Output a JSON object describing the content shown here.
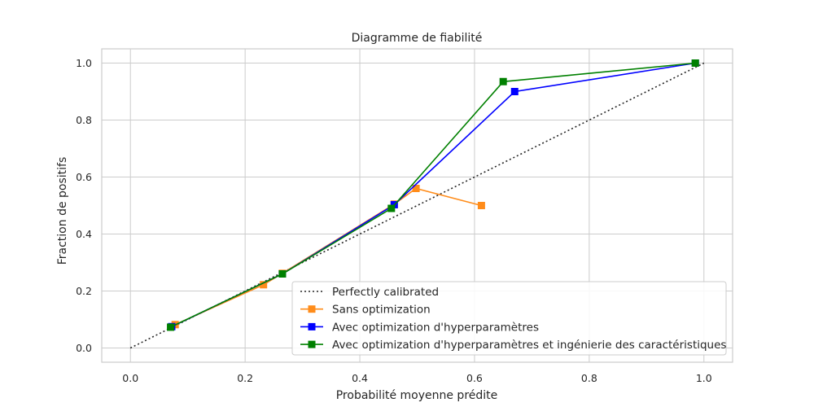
{
  "chart_data": {
    "type": "line",
    "title": "Diagramme de fiabilité",
    "xlabel": "Probabilité moyenne prédite",
    "ylabel": "Fraction de positifs",
    "xlim": [
      -0.05,
      1.05
    ],
    "ylim": [
      -0.05,
      1.05
    ],
    "x_ticks": [
      0.0,
      0.2,
      0.4,
      0.6,
      0.8,
      1.0
    ],
    "y_ticks": [
      0.0,
      0.2,
      0.4,
      0.6,
      0.8,
      1.0
    ],
    "x_tick_labels": [
      "0.0",
      "0.2",
      "0.4",
      "0.6",
      "0.8",
      "1.0"
    ],
    "y_tick_labels": [
      "0.0",
      "0.2",
      "0.4",
      "0.6",
      "0.8",
      "1.0"
    ],
    "grid": true,
    "legend_position": "lower right",
    "series": [
      {
        "name": "Perfectly calibrated",
        "color": "#262626",
        "style": "dotted",
        "marker": "none",
        "points": [
          [
            0.0,
            0.0
          ],
          [
            1.0,
            1.0
          ]
        ]
      },
      {
        "name": "Sans optimization",
        "color": "#ff8c1a",
        "style": "solid",
        "marker": "square",
        "points": [
          [
            0.078,
            0.082
          ],
          [
            0.232,
            0.222
          ],
          [
            0.265,
            0.262
          ],
          [
            0.46,
            0.505
          ],
          [
            0.498,
            0.56
          ],
          [
            0.612,
            0.5
          ]
        ]
      },
      {
        "name": "Avec optimization d'hyperparamètres",
        "color": "#0000ff",
        "style": "solid",
        "marker": "square",
        "points": [
          [
            0.072,
            0.075
          ],
          [
            0.265,
            0.26
          ],
          [
            0.46,
            0.503
          ],
          [
            0.67,
            0.9
          ],
          [
            0.985,
            1.0
          ]
        ]
      },
      {
        "name": "Avec optimization d'hyperparamètres et ingénierie des caractéristiques",
        "color": "#008000",
        "style": "solid",
        "marker": "square",
        "points": [
          [
            0.07,
            0.073
          ],
          [
            0.265,
            0.26
          ],
          [
            0.455,
            0.49
          ],
          [
            0.65,
            0.935
          ],
          [
            0.985,
            1.0
          ]
        ]
      }
    ]
  }
}
